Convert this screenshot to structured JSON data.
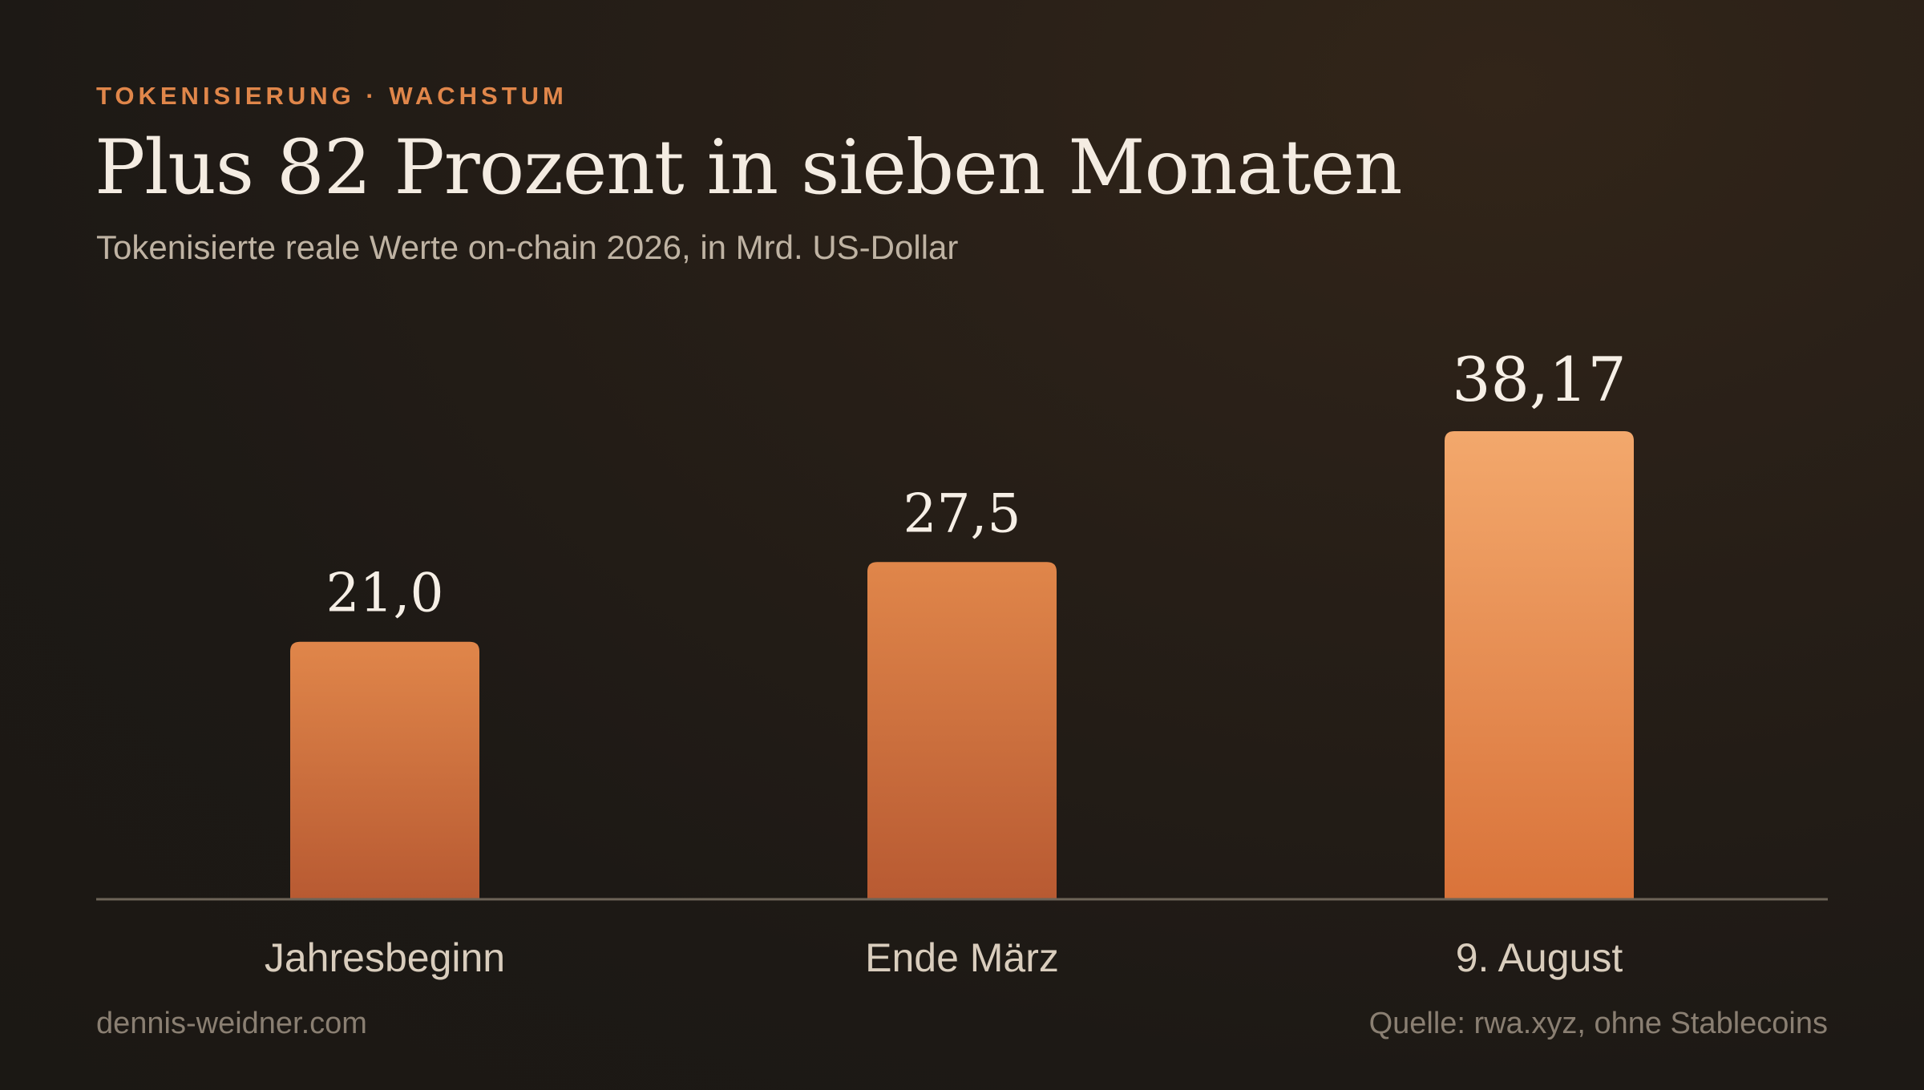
{
  "header": {
    "kicker": "TOKENISIERUNG · WACHSTUM",
    "title": "Plus 82 Prozent in sieben Monaten",
    "subtitle": "Tokenisierte reale Werte on-chain 2026, in Mrd. US-Dollar"
  },
  "footer": {
    "site": "dennis-weidner.com",
    "source": "Quelle: rwa.xyz, ohne Stablecoins"
  },
  "colors": {
    "background": "#1d1915",
    "accent": "#e0864a",
    "bar_top": "#e0864a",
    "bar_bottom": "#b85a32",
    "highlight_bar_top": "#f3a86c",
    "highlight_bar_bottom": "#d9733a",
    "title": "#f4ece2",
    "muted": "#bfb3a3",
    "baseline": "#6d6458"
  },
  "chart_data": {
    "type": "bar",
    "categories": [
      "Jahresbeginn",
      "Ende März",
      "9. August"
    ],
    "values": [
      21.0,
      27.5,
      38.17
    ],
    "value_labels": [
      "21,0",
      "27,5",
      "38,17"
    ],
    "highlight_index": 2,
    "ylim": [
      0,
      40
    ],
    "grid": false,
    "legend": "none",
    "xlabel": "",
    "ylabel": ""
  }
}
